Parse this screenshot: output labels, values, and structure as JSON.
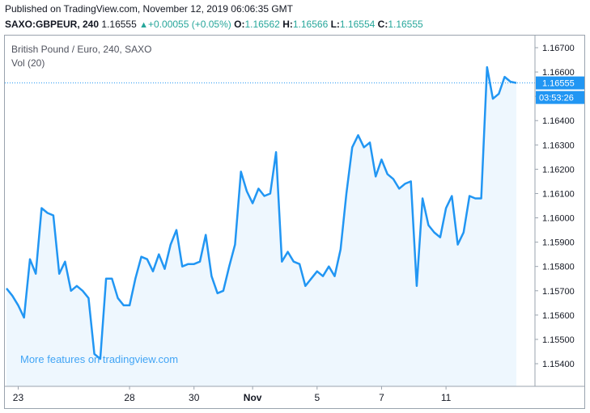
{
  "header": {
    "published": "Published on TradingView.com, November 12, 2019 06:06:35 GMT",
    "symbol": "SAXO:GBPEUR, 240",
    "last": "1.16555",
    "change_arrow": "▲",
    "change": "+0.00055 (+0.05%)",
    "o_label": "O:",
    "o_val": "1.16562",
    "h_label": "H:",
    "h_val": "1.16566",
    "l_label": "L:",
    "l_val": "1.16554",
    "c_label": "C:",
    "c_val": "1.16555"
  },
  "legend": {
    "title": "British Pound / Euro, 240, SAXO",
    "volume": "Vol (20)"
  },
  "watermark": "More features on tradingview.com",
  "price_tag": {
    "price": "1.16555",
    "countdown": "03:53:26"
  },
  "colors": {
    "line": "#2196f3",
    "fill": "#e3f2fd",
    "up": "#26a69a",
    "tag": "#2196f3",
    "link": "#42a5f5"
  },
  "chart_data": {
    "type": "area",
    "y_ticks": [
      "1.16700",
      "1.16600",
      "1.16500",
      "1.16400",
      "1.16300",
      "1.16200",
      "1.16100",
      "1.16000",
      "1.15900",
      "1.15800",
      "1.15700",
      "1.15600",
      "1.15500",
      "1.15400"
    ],
    "x_ticks": [
      {
        "label": "23",
        "i": 2
      },
      {
        "label": "28",
        "i": 21
      },
      {
        "label": "30",
        "i": 32
      },
      {
        "label": "Nov",
        "i": 42
      },
      {
        "label": "5",
        "i": 53
      },
      {
        "label": "7",
        "i": 64
      },
      {
        "label": "11",
        "i": 75
      }
    ],
    "ylim": [
      1.1533,
      1.1677
    ],
    "last_value": 1.16555,
    "values": [
      1.1571,
      1.1568,
      1.1564,
      1.1559,
      1.1583,
      1.1577,
      1.1604,
      1.1602,
      1.1601,
      1.1577,
      1.1582,
      1.157,
      1.1572,
      1.157,
      1.1567,
      1.1544,
      1.1542,
      1.1575,
      1.1575,
      1.1567,
      1.1564,
      1.1564,
      1.1575,
      1.1584,
      1.1583,
      1.1578,
      1.1585,
      1.1579,
      1.1589,
      1.1595,
      1.158,
      1.1581,
      1.1581,
      1.1582,
      1.1593,
      1.1576,
      1.1569,
      1.157,
      1.158,
      1.1589,
      1.1619,
      1.1611,
      1.1606,
      1.1612,
      1.1609,
      1.161,
      1.1627,
      1.1582,
      1.1586,
      1.1582,
      1.1581,
      1.1572,
      1.1575,
      1.1578,
      1.1576,
      1.158,
      1.1576,
      1.1587,
      1.161,
      1.1629,
      1.1634,
      1.1629,
      1.1631,
      1.1617,
      1.1624,
      1.1618,
      1.1616,
      1.1612,
      1.1614,
      1.1615,
      1.1572,
      1.1608,
      1.1597,
      1.1594,
      1.1592,
      1.1604,
      1.1609,
      1.1589,
      1.1594,
      1.1609,
      1.1608,
      1.1608,
      1.1662,
      1.1649,
      1.1651,
      1.1658,
      1.1656,
      1.16555
    ]
  }
}
